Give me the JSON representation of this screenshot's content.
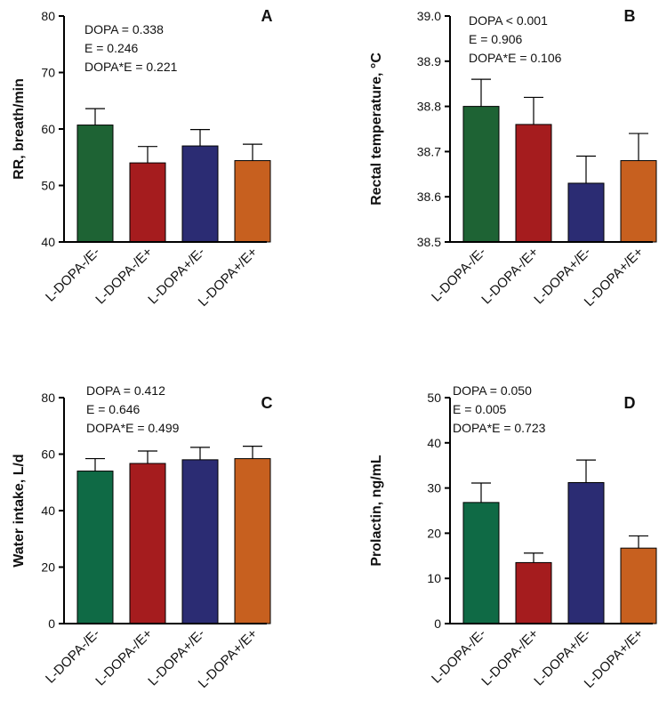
{
  "chart_data": [
    {
      "type": "bar",
      "panel_letter": "A",
      "ylabel": "RR, breath/min",
      "categories": [
        "L-DOPA-/E-",
        "L-DOPA-/E+",
        "L-DOPA+/E-",
        "L-DOPA+/E+"
      ],
      "values": [
        60.7,
        54.0,
        57.0,
        54.4
      ],
      "errors": [
        2.9,
        2.9,
        2.9,
        2.9
      ],
      "colors": [
        "#1e6334",
        "#a51c1e",
        "#2b2c73",
        "#c7601f"
      ],
      "ylim": [
        40,
        80
      ],
      "yticks": [
        40,
        50,
        60,
        70,
        80
      ],
      "stats": [
        "DOPA = 0.338",
        "E = 0.246",
        "DOPA*E = 0.221"
      ]
    },
    {
      "type": "bar",
      "panel_letter": "B",
      "ylabel": "Rectal temperature, °C",
      "categories": [
        "L-DOPA-/E-",
        "L-DOPA-/E+",
        "L-DOPA+/E-",
        "L-DOPA+/E+"
      ],
      "values": [
        38.8,
        38.76,
        38.63,
        38.68
      ],
      "errors": [
        0.06,
        0.06,
        0.06,
        0.06
      ],
      "colors": [
        "#1e6334",
        "#a51c1e",
        "#2b2c73",
        "#c7601f"
      ],
      "ylim": [
        38.5,
        39.0
      ],
      "yticks": [
        "38.5",
        "38.6",
        "38.7",
        "38.8",
        "38.9",
        "39.0"
      ],
      "stats": [
        "DOPA < 0.001",
        "E = 0.906",
        "DOPA*E = 0.106"
      ]
    },
    {
      "type": "bar",
      "panel_letter": "C",
      "ylabel": "Water intake, L/d",
      "categories": [
        "L-DOPA-/E-",
        "L-DOPA-/E+",
        "L-DOPA+/E-",
        "L-DOPA+/E+"
      ],
      "values": [
        54.0,
        56.7,
        58.0,
        58.4
      ],
      "errors": [
        4.4,
        4.4,
        4.4,
        4.4
      ],
      "colors": [
        "#0f6a45",
        "#a51c1e",
        "#2b2c73",
        "#c7601f"
      ],
      "ylim": [
        0,
        80
      ],
      "yticks": [
        0,
        20,
        40,
        60,
        80
      ],
      "stats": [
        "DOPA = 0.412",
        "E = 0.646",
        "DOPA*E = 0.499"
      ]
    },
    {
      "type": "bar",
      "panel_letter": "D",
      "ylabel": "Prolactin, ng/mL",
      "categories": [
        "L-DOPA-/E-",
        "L-DOPA-/E+",
        "L-DOPA+/E-",
        "L-DOPA+/E+"
      ],
      "values": [
        26.8,
        13.5,
        31.2,
        16.7
      ],
      "errors": [
        4.3,
        2.1,
        5.0,
        2.7
      ],
      "colors": [
        "#0f6a45",
        "#a51c1e",
        "#2b2c73",
        "#c7601f"
      ],
      "ylim": [
        0,
        50
      ],
      "yticks": [
        0,
        10,
        20,
        30,
        40,
        50
      ],
      "stats": [
        "DOPA = 0.050",
        "E = 0.005",
        "DOPA*E = 0.723"
      ]
    }
  ]
}
